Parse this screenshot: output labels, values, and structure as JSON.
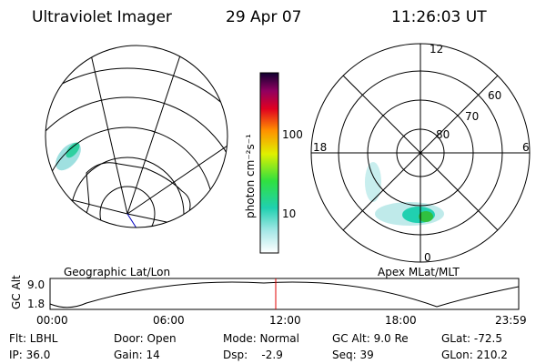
{
  "header": {
    "instrument": "Ultraviolet Imager",
    "date": "29 Apr 07",
    "time": "11:26:03 UT"
  },
  "colorbar": {
    "unit": "photon cm⁻²s⁻¹",
    "ticks": [
      "100",
      "10"
    ]
  },
  "left_map": {
    "label": "Geographic Lat/Lon"
  },
  "right_map": {
    "label": "Apex MLat/MLT",
    "mlt_labels": [
      "12",
      "18",
      "6",
      "0"
    ],
    "lat_labels": [
      "60",
      "70",
      "80"
    ]
  },
  "altitude_plot": {
    "ylabel": "GC Alt",
    "yticks": [
      "9.0",
      "1.8"
    ],
    "xticks": [
      "00:00",
      "06:00",
      "12:00",
      "18:00",
      "23:59"
    ]
  },
  "info": [
    [
      "Flt: LBHL",
      "Door: Open",
      "Mode: Normal",
      "GC Alt: 9.0 Re",
      "GLat: -72.5"
    ],
    [
      "IP: 36.0",
      "Gain: 14",
      "Dsp:    -2.9",
      "Seq: 39",
      "GLon: 210.2"
    ]
  ]
}
